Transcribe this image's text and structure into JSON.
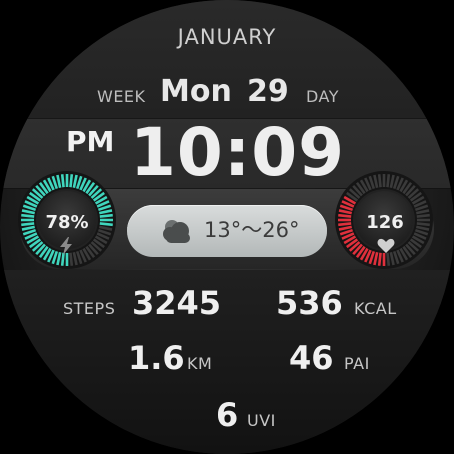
{
  "date": {
    "month": "JANUARY",
    "week_label": "WEEK",
    "weekday": "Mon",
    "day": "29",
    "day_label": "DAY"
  },
  "time": {
    "ampm": "PM",
    "value": "10:09"
  },
  "battery": {
    "percent_text": "78%",
    "level": 0.78,
    "icon": "lightning-bolt-icon",
    "color": "#3fd6bd"
  },
  "weather": {
    "icon": "cloud-icon",
    "range": "13°～26°"
  },
  "heart_rate": {
    "value": "126",
    "icon": "heart-icon",
    "color": "#e0303c"
  },
  "stats": {
    "steps": {
      "label": "STEPS",
      "value": "3245"
    },
    "kcal": {
      "label": "KCAL",
      "value": "536"
    },
    "km": {
      "label": "KM",
      "value": "1.6"
    },
    "pai": {
      "label": "PAI",
      "value": "46"
    },
    "uvi": {
      "label": "UVI",
      "value": "6"
    }
  }
}
